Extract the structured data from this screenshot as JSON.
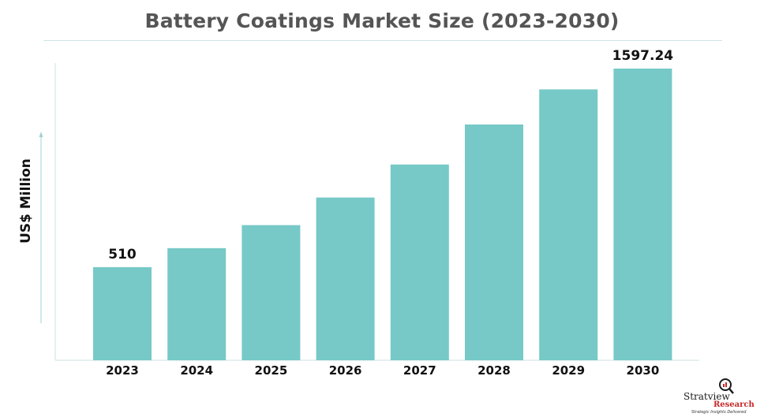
{
  "chart_data": {
    "type": "bar",
    "title": "Battery Coatings Market Size (2023-2030)",
    "xlabel": "",
    "ylabel": "US$ Million",
    "categories": [
      "2023",
      "2024",
      "2025",
      "2026",
      "2027",
      "2028",
      "2029",
      "2030"
    ],
    "values": [
      510,
      614,
      740,
      891,
      1072,
      1291,
      1483,
      1597.24
    ],
    "data_labels": {
      "0": "510",
      "7": "1597.24"
    },
    "ylim": [
      0,
      1800
    ],
    "grid": false,
    "bar_color": "#76c9c6"
  },
  "logo": {
    "name": "Stratview",
    "name2": "Research",
    "tagline": "Strategic Insights Delivered",
    "trademark": "TM"
  }
}
